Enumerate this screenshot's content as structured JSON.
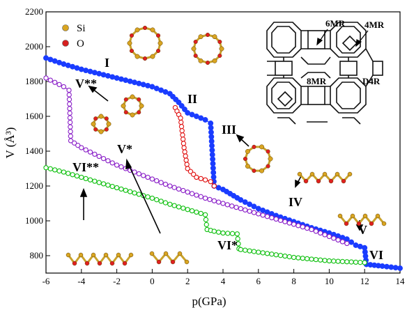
{
  "chart_data": {
    "type": "line",
    "xlabel": "p(GPa)",
    "ylabel": "V (Å³)",
    "xlim": [
      -6,
      14
    ],
    "ylim": [
      700,
      2200
    ],
    "xticks": [
      "-6",
      "-4",
      "-2",
      "0",
      "2",
      "4",
      "6",
      "8",
      "10",
      "12",
      "14"
    ],
    "yticks": [
      "800",
      "1000",
      "1200",
      "1400",
      "1600",
      "1800",
      "2000",
      "2200"
    ],
    "legend": [
      {
        "label": "Si",
        "color": "#d9a521"
      },
      {
        "label": "O",
        "color": "#d62020"
      }
    ],
    "series": [
      {
        "color": "#1a3cff",
        "filled": true,
        "x": [
          -6,
          -5,
          -4,
          -3,
          -2,
          -1,
          0,
          1,
          1.5,
          2,
          2.5,
          3,
          3.3,
          3.5,
          4,
          5,
          6,
          7,
          8,
          9,
          10,
          11,
          11.5,
          12,
          12.1,
          13,
          14
        ],
        "y": [
          1935,
          1900,
          1870,
          1845,
          1820,
          1795,
          1770,
          1730,
          1680,
          1620,
          1600,
          1580,
          1560,
          1200,
          1180,
          1120,
          1070,
          1030,
          995,
          960,
          930,
          895,
          860,
          845,
          750,
          740,
          728
        ]
      },
      {
        "color": "#e01010",
        "filled": false,
        "x": [
          1.3,
          1.6,
          1.8,
          2.0,
          2.5,
          3.0,
          3.3,
          3.5
        ],
        "y": [
          1650,
          1590,
          1420,
          1300,
          1250,
          1235,
          1225,
          1200
        ]
      },
      {
        "color": "#8a1fc8",
        "filled": false,
        "x": [
          -6,
          -5.5,
          -5,
          -4.7,
          -4.6,
          -4,
          -3,
          -2,
          -1,
          0,
          1,
          2,
          3,
          4,
          5,
          6,
          7,
          8,
          9,
          10,
          11
        ],
        "y": [
          1820,
          1795,
          1770,
          1750,
          1460,
          1420,
          1370,
          1320,
          1280,
          1240,
          1200,
          1165,
          1130,
          1100,
          1070,
          1040,
          1010,
          980,
          950,
          910,
          870
        ]
      },
      {
        "color": "#10c010",
        "filled": false,
        "x": [
          -6,
          -5,
          -4,
          -3,
          -2,
          -1,
          0,
          1,
          2,
          3,
          3.1,
          3.5,
          4,
          4.8,
          4.9,
          5,
          6,
          7,
          8,
          9,
          10,
          11,
          12
        ],
        "y": [
          1305,
          1280,
          1250,
          1220,
          1190,
          1160,
          1130,
          1095,
          1065,
          1035,
          950,
          940,
          930,
          925,
          840,
          835,
          820,
          805,
          790,
          780,
          770,
          765,
          760
        ]
      }
    ],
    "labels": [
      "I",
      "II",
      "III",
      "IV",
      "V",
      "VI",
      "V**",
      "V*",
      "VI**",
      "VI*"
    ],
    "inset_labels": [
      "6MR",
      "4MR",
      "8MR",
      "D4R"
    ]
  }
}
